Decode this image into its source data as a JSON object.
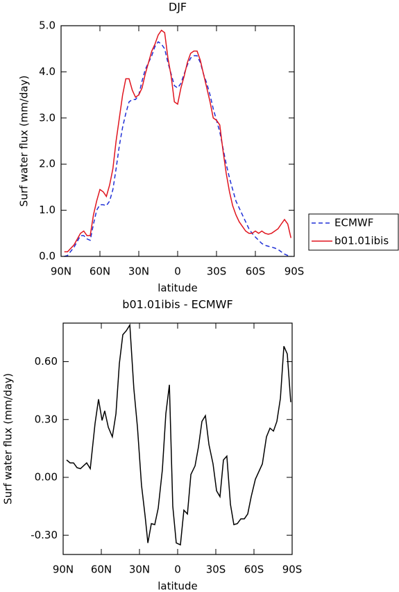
{
  "chart_data": [
    {
      "type": "line",
      "title": "DJF",
      "xlabel": "latitude",
      "ylabel": "Surf water flux (mm/day)",
      "x": [
        87.5,
        85,
        80,
        75,
        72.5,
        70,
        67.5,
        65,
        62.5,
        60,
        57.5,
        55,
        52.5,
        50,
        47.5,
        45,
        42.5,
        40,
        37.5,
        35,
        32.5,
        30,
        27.5,
        25,
        22.5,
        20,
        17.5,
        15,
        12.5,
        10,
        7.5,
        5,
        2.5,
        0,
        -2.5,
        -5,
        -7.5,
        -10,
        -12.5,
        -15,
        -17.5,
        -20,
        -22.5,
        -25,
        -27.5,
        -30,
        -32.5,
        -35,
        -37.5,
        -40,
        -42.5,
        -45,
        -47.5,
        -50,
        -52.5,
        -55,
        -57.5,
        -60,
        -62.5,
        -65,
        -67.5,
        -70,
        -72.5,
        -75,
        -77.5,
        -80,
        -82.5,
        -85,
        -87.5
      ],
      "series": [
        {
          "name": "ECMWF",
          "color": "#1f2fd6",
          "linestyle": "dashed",
          "values": [
            0.0,
            0.02,
            0.2,
            0.45,
            0.45,
            0.38,
            0.35,
            0.7,
            1.0,
            1.12,
            1.12,
            1.1,
            1.2,
            1.45,
            1.9,
            2.4,
            2.8,
            3.1,
            3.35,
            3.4,
            3.4,
            3.5,
            3.8,
            4.05,
            4.2,
            4.35,
            4.55,
            4.65,
            4.6,
            4.5,
            4.2,
            3.95,
            3.7,
            3.65,
            3.75,
            3.95,
            4.15,
            4.3,
            4.35,
            4.35,
            4.2,
            3.95,
            3.75,
            3.5,
            3.2,
            2.95,
            2.7,
            2.35,
            2.0,
            1.7,
            1.45,
            1.2,
            1.05,
            0.9,
            0.75,
            0.6,
            0.5,
            0.42,
            0.35,
            0.28,
            0.24,
            0.22,
            0.2,
            0.18,
            0.15,
            0.1,
            0.05,
            0.02,
            0.0
          ]
        },
        {
          "name": "b01.01ibis",
          "color": "#e0141e",
          "linestyle": "solid",
          "values": [
            0.1,
            0.1,
            0.25,
            0.5,
            0.55,
            0.45,
            0.45,
            0.9,
            1.2,
            1.45,
            1.4,
            1.3,
            1.55,
            1.9,
            2.5,
            3.0,
            3.5,
            3.85,
            3.85,
            3.6,
            3.45,
            3.5,
            3.65,
            3.95,
            4.2,
            4.45,
            4.6,
            4.8,
            4.9,
            4.85,
            4.3,
            3.9,
            3.35,
            3.3,
            3.65,
            3.9,
            4.2,
            4.4,
            4.45,
            4.45,
            4.25,
            3.95,
            3.65,
            3.35,
            3.0,
            2.95,
            2.85,
            2.3,
            1.8,
            1.4,
            1.1,
            0.9,
            0.75,
            0.65,
            0.55,
            0.5,
            0.5,
            0.55,
            0.5,
            0.55,
            0.5,
            0.48,
            0.5,
            0.55,
            0.6,
            0.7,
            0.8,
            0.7,
            0.4
          ]
        }
      ],
      "xlim": [
        90,
        -90
      ],
      "xticks": [
        {
          "value": 90,
          "label": "90N"
        },
        {
          "value": 60,
          "label": "60N"
        },
        {
          "value": 30,
          "label": "30N"
        },
        0,
        {
          "value": -30,
          "label": "30S"
        },
        {
          "value": -60,
          "label": "60S"
        },
        {
          "value": -90,
          "label": "90S"
        }
      ],
      "ylim": [
        0,
        5
      ],
      "yticks": [
        {
          "value": 0,
          "label": "0.0"
        },
        {
          "value": 1,
          "label": "1.0"
        },
        {
          "value": 2,
          "label": "2.0"
        },
        {
          "value": 3,
          "label": "3.0"
        },
        {
          "value": 4,
          "label": "4.0"
        },
        {
          "value": 5,
          "label": "5.0"
        }
      ],
      "legend": "right"
    },
    {
      "type": "line",
      "title": "b01.01ibis - ECMWF",
      "xlabel": "latitude",
      "ylabel": "Surf water flux (mm/day)",
      "x": [
        87.3,
        84.5,
        81.8,
        79.1,
        76.4,
        71.5,
        68.7,
        64.9,
        62.2,
        59.4,
        57.3,
        54.5,
        51.3,
        48.5,
        45.8,
        43.1,
        40.4,
        37.6,
        34.4,
        31.6,
        28.4,
        25.6,
        23.4,
        20.7,
        18.0,
        15.3,
        12.0,
        9.3,
        6.5,
        3.8,
        1.1,
        -2.2,
        -4.9,
        -7.7,
        -10.4,
        -13.7,
        -16.4,
        -19.1,
        -21.8,
        -24.6,
        -27.8,
        -30.6,
        -33.3,
        -36.0,
        -38.7,
        -41.5,
        -44.2,
        -46.9,
        -49.7,
        -52.4,
        -55.1,
        -57.8,
        -61.1,
        -66.6,
        -69.8,
        -72.6,
        -75.3,
        -78.0,
        -80.8,
        -83.5,
        -86.2,
        -88.9
      ],
      "values": [
        0.09,
        0.075,
        0.075,
        0.05,
        0.045,
        0.075,
        0.045,
        0.28,
        0.405,
        0.295,
        0.345,
        0.26,
        0.21,
        0.33,
        0.59,
        0.74,
        0.76,
        0.79,
        0.46,
        0.26,
        -0.04,
        -0.2,
        -0.34,
        -0.24,
        -0.245,
        -0.16,
        0.04,
        0.33,
        0.48,
        -0.15,
        -0.34,
        -0.35,
        -0.17,
        -0.19,
        0.015,
        0.06,
        0.16,
        0.29,
        0.32,
        0.17,
        0.07,
        -0.07,
        -0.1,
        0.09,
        0.11,
        -0.14,
        -0.245,
        -0.24,
        -0.215,
        -0.215,
        -0.19,
        -0.1,
        -0.01,
        0.07,
        0.21,
        0.255,
        0.24,
        0.29,
        0.41,
        0.68,
        0.64,
        0.39
      ],
      "color": "#000000",
      "xlim": [
        90,
        -90
      ],
      "xticks": [
        {
          "value": 90,
          "label": "90N"
        },
        {
          "value": 60,
          "label": "60N"
        },
        {
          "value": 30,
          "label": "30N"
        },
        0,
        {
          "value": -30,
          "label": "30S"
        },
        {
          "value": -60,
          "label": "60S"
        },
        {
          "value": -90,
          "label": "90S"
        }
      ],
      "ylim": [
        -0.4,
        0.8
      ],
      "yticks": [
        {
          "value": -0.3,
          "label": "-0.30"
        },
        {
          "value": 0,
          "label": "0.00"
        },
        {
          "value": 0.3,
          "label": "0.30"
        },
        {
          "value": 0.6,
          "label": "0.60"
        }
      ]
    }
  ]
}
